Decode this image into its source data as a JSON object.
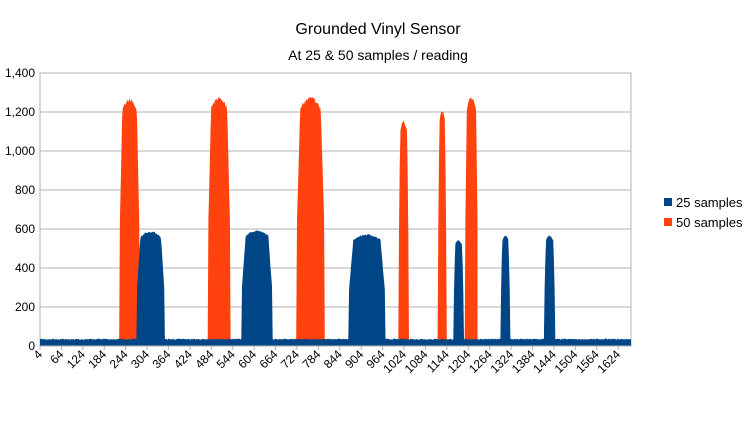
{
  "chart_data": {
    "type": "area",
    "title": "Grounded Vinyl Sensor",
    "subtitle": "At 25 & 50 samples / reading",
    "xlabel": "",
    "ylabel": "",
    "ylim": [
      0,
      1400
    ],
    "xlim": [
      4,
      1660
    ],
    "grid": true,
    "legend_position": "right",
    "y_ticks": [
      "0",
      "200",
      "400",
      "600",
      "800",
      "1,000",
      "1,200",
      "1,400"
    ],
    "y_tick_values": [
      0,
      200,
      400,
      600,
      800,
      1000,
      1200,
      1400
    ],
    "x_ticks": [
      "4",
      "64",
      "124",
      "184",
      "244",
      "304",
      "364",
      "424",
      "484",
      "544",
      "604",
      "664",
      "724",
      "784",
      "844",
      "904",
      "964",
      "1024",
      "1084",
      "1144",
      "1204",
      "1264",
      "1324",
      "1384",
      "1444",
      "1504",
      "1564",
      "1624"
    ],
    "x_tick_values": [
      4,
      64,
      124,
      184,
      244,
      304,
      364,
      424,
      484,
      544,
      604,
      664,
      724,
      784,
      844,
      904,
      964,
      1024,
      1084,
      1144,
      1204,
      1264,
      1324,
      1384,
      1444,
      1504,
      1564,
      1624
    ],
    "series": [
      {
        "name": "50 samples",
        "color": "#ff420e",
        "baseline": 30,
        "x_range": [
          4,
          1230
        ],
        "pulses": [
          {
            "start": 228,
            "end": 282,
            "peak": 1270
          },
          {
            "start": 476,
            "end": 536,
            "peak": 1280
          },
          {
            "start": 724,
            "end": 800,
            "peak": 1280
          },
          {
            "start": 1010,
            "end": 1036,
            "peak": 1160
          },
          {
            "start": 1120,
            "end": 1142,
            "peak": 1215
          },
          {
            "start": 1196,
            "end": 1230,
            "peak": 1280
          }
        ]
      },
      {
        "name": "25 samples",
        "color": "#004586",
        "baseline": 35,
        "x_range": [
          4,
          1660
        ],
        "pulses": [
          {
            "start": 276,
            "end": 352,
            "peak": 590
          },
          {
            "start": 570,
            "end": 654,
            "peak": 595
          },
          {
            "start": 870,
            "end": 970,
            "peak": 575
          },
          {
            "start": 1164,
            "end": 1190,
            "peak": 545
          },
          {
            "start": 1296,
            "end": 1320,
            "peak": 570
          },
          {
            "start": 1418,
            "end": 1446,
            "peak": 570
          }
        ]
      }
    ]
  }
}
